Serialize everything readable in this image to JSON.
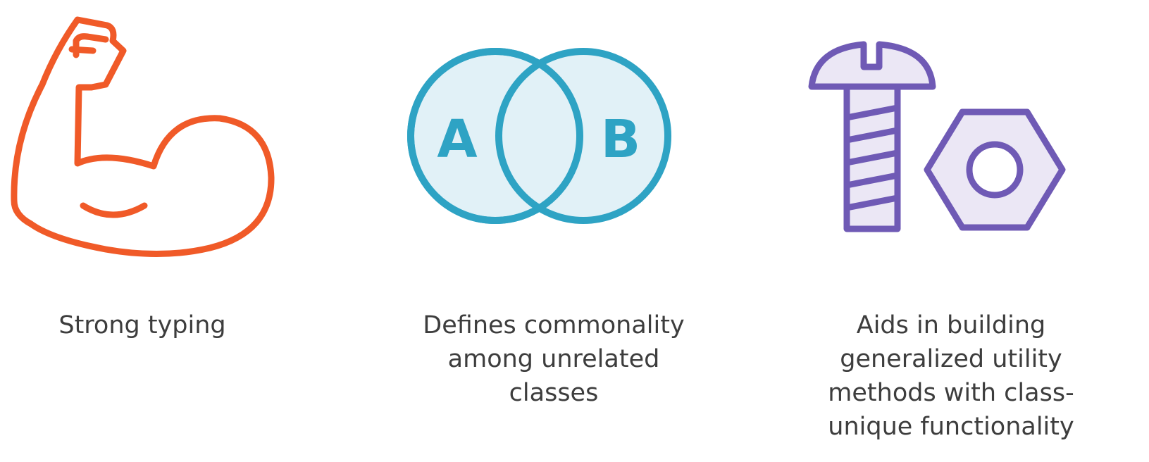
{
  "colors": {
    "muscle": "#f05a28",
    "venn_stroke": "#2ea3c4",
    "venn_fill": "#e1f1f7",
    "hardware_stroke": "#6f5ab5",
    "hardware_fill": "#ebe7f5",
    "caption_text": "#3d3d3d"
  },
  "features": [
    {
      "icon": "flexed-bicep-icon",
      "caption": [
        "Strong typing"
      ]
    },
    {
      "icon": "venn-diagram-icon",
      "venn_labels": [
        "A",
        "B"
      ],
      "caption": [
        "Defines commonality",
        "among unrelated",
        "classes"
      ]
    },
    {
      "icon": "bolt-and-nut-icon",
      "caption": [
        "Aids in building",
        "generalized utility",
        "methods with class-",
        "unique functionality"
      ]
    }
  ]
}
